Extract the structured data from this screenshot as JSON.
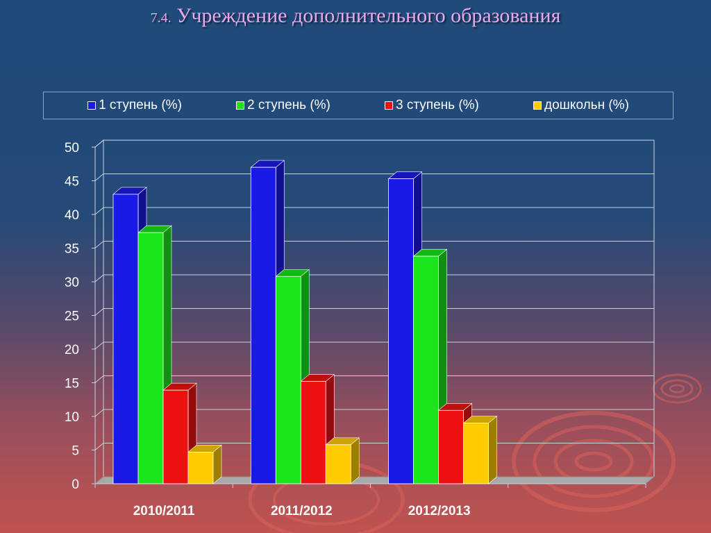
{
  "title": {
    "number": "7.4.",
    "text": "Учреждение дополнительного образования"
  },
  "chart_data": {
    "type": "bar",
    "categories": [
      "2010/2011",
      "2011/2012",
      "2012/2013"
    ],
    "series": [
      {
        "name": "1 ступень (%)",
        "color": "#1a1ae6",
        "values": [
          43,
          47,
          45.3
        ]
      },
      {
        "name": "2 ступень (%)",
        "color": "#19e619",
        "values": [
          37.3,
          30.8,
          33.8
        ]
      },
      {
        "name": "3 ступень (%)",
        "color": "#ee1111",
        "values": [
          13.9,
          15.2,
          10.9
        ]
      },
      {
        "name": "дошкольн (%)",
        "color": "#ffcc00",
        "values": [
          4.7,
          5.8,
          9
        ]
      }
    ],
    "yticks": [
      "0",
      "5",
      "10",
      "15",
      "20",
      "25",
      "30",
      "35",
      "40",
      "45",
      "50"
    ],
    "ylim": [
      0,
      50
    ],
    "grid": true,
    "legend_position": "top",
    "xlabel": "",
    "ylabel": ""
  }
}
